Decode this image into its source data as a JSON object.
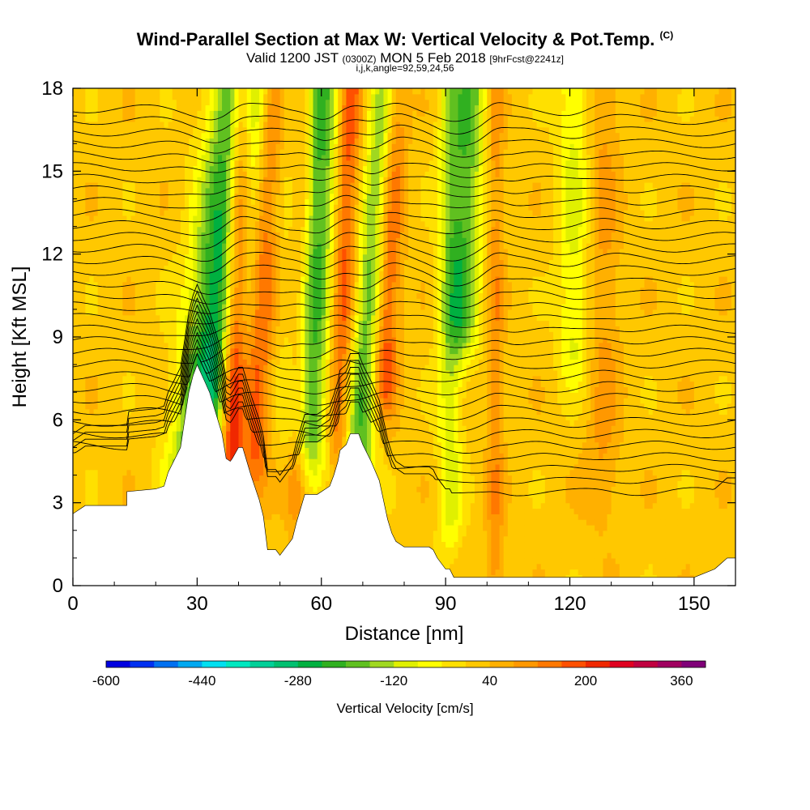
{
  "header": {
    "title": "Wind-Parallel Section at Max W: Vertical Velocity & Pot.Temp.",
    "title_mark": "(C)",
    "valid_prefix": "Valid 1200 JST",
    "valid_utc": "(0300Z)",
    "valid_date": "MON 5 Feb 2018",
    "forecast_tag": "[9hrFcst@2241z]",
    "indices": "i,j,k,angle=92,59,24,56"
  },
  "chart_data": {
    "type": "heatmap",
    "xlabel": "Distance [nm]",
    "ylabel": "Height [Kft MSL]",
    "xlim": [
      0,
      160
    ],
    "ylim": [
      0,
      18
    ],
    "xticks": [
      0,
      30,
      60,
      90,
      120,
      150
    ],
    "yticks": [
      0,
      3,
      6,
      9,
      12,
      15,
      18
    ],
    "colorbar": {
      "label": "Vertical Velocity [cm/s]",
      "min": -600,
      "max": 400,
      "step": 40,
      "tick_labels": [
        "-600",
        "-440",
        "-280",
        "-120",
        "40",
        "200",
        "360"
      ],
      "tick_values": [
        -600,
        -440,
        -280,
        -120,
        40,
        200,
        360
      ],
      "colors": [
        "#0000e0",
        "#0030f0",
        "#0070f0",
        "#00a8f0",
        "#00e0f0",
        "#00e8c0",
        "#00d098",
        "#00c070",
        "#00b040",
        "#30b020",
        "#60c020",
        "#a0d820",
        "#e0f000",
        "#ffff00",
        "#ffe000",
        "#ffc800",
        "#ffb000",
        "#ff9800",
        "#ff7800",
        "#ff5000",
        "#f02800",
        "#e00020",
        "#c00040",
        "#a00060",
        "#800078"
      ]
    },
    "background_value": 20,
    "velocity_features": [
      {
        "x_base": 31,
        "x_top": 41,
        "width": 7,
        "value": -300,
        "y_bottom": 4.5
      },
      {
        "x_base": 38,
        "x_top": 41,
        "width": 3,
        "value": 340,
        "y_bottom": 4.5
      },
      {
        "x_base": 44,
        "x_top": 48,
        "width": 3,
        "value": 180,
        "y_bottom": 5
      },
      {
        "x_base": 57,
        "x_top": 60,
        "width": 5,
        "value": -220,
        "y_bottom": 6
      },
      {
        "x_base": 69,
        "x_top": 76,
        "width": 4,
        "value": -200,
        "y_bottom": 5
      },
      {
        "x_base": 64,
        "x_top": 67,
        "width": 3,
        "value": 200,
        "y_bottom": 6
      },
      {
        "x_base": 75,
        "x_top": 78,
        "width": 3,
        "value": 230,
        "y_bottom": 8
      },
      {
        "x_base": 94,
        "x_top": 96,
        "width": 4,
        "value": -180,
        "y_bottom": 10
      },
      {
        "x_base": 54,
        "x_top": 56,
        "width": 2.5,
        "value": 150,
        "y_bottom": 4
      },
      {
        "x_base": 102,
        "x_top": 102,
        "width": 2,
        "value": 110,
        "y_bottom": 1
      },
      {
        "x_base": 91,
        "x_top": 91,
        "width": 3,
        "value": -100,
        "y_bottom": 3
      },
      {
        "x_base": 121,
        "x_top": 121,
        "width": 4,
        "value": -90,
        "y_bottom": 9
      },
      {
        "x_base": 128,
        "x_top": 128,
        "width": 4,
        "value": 90,
        "y_bottom": 4
      }
    ],
    "terrain": {
      "x": [
        0,
        3,
        7,
        13,
        13,
        20,
        22,
        23,
        26,
        27,
        28,
        29,
        30,
        30,
        33,
        34,
        35,
        36,
        37,
        38,
        38.5,
        40,
        41,
        42,
        43,
        45,
        46,
        47,
        48,
        49,
        50,
        51,
        52,
        53,
        54,
        55,
        56,
        57,
        58,
        59,
        62,
        63,
        64,
        64.5,
        66,
        67,
        68,
        68.5,
        69,
        70,
        72,
        74,
        75,
        76,
        77,
        78,
        80,
        81,
        82,
        86,
        87,
        88,
        90,
        91,
        92,
        94,
        96,
        96,
        100,
        110,
        120,
        140,
        145,
        150,
        155,
        158,
        160
      ],
      "y": [
        2.6,
        2.9,
        2.9,
        2.9,
        3.4,
        3.5,
        3.6,
        4.1,
        5.0,
        6.0,
        7.0,
        7.6,
        8.0,
        8.0,
        7.0,
        6.5,
        6.0,
        5.5,
        4.6,
        4.5,
        4.6,
        5.0,
        5.0,
        4.5,
        4.0,
        3.1,
        2.5,
        1.3,
        1.3,
        1.3,
        1.1,
        1.3,
        1.5,
        1.7,
        2.3,
        2.8,
        3.3,
        3.3,
        3.3,
        3.3,
        3.6,
        4.0,
        4.5,
        4.9,
        5.1,
        5.5,
        5.5,
        5.5,
        5.5,
        5.1,
        4.5,
        3.8,
        3.1,
        2.4,
        1.9,
        1.6,
        1.4,
        1.4,
        1.4,
        1.4,
        1.3,
        1.0,
        0.6,
        0.6,
        0.3,
        0.3,
        0.3,
        0.3,
        0.3,
        0.3,
        0.3,
        0.3,
        0.3,
        0.3,
        0.6,
        1.0,
        1.0
      ]
    },
    "theta_contours": {
      "count": 34,
      "base_height": 3.4,
      "spacing": 0.42,
      "tick_label_note": "isentropes drawn as contour lines"
    }
  }
}
